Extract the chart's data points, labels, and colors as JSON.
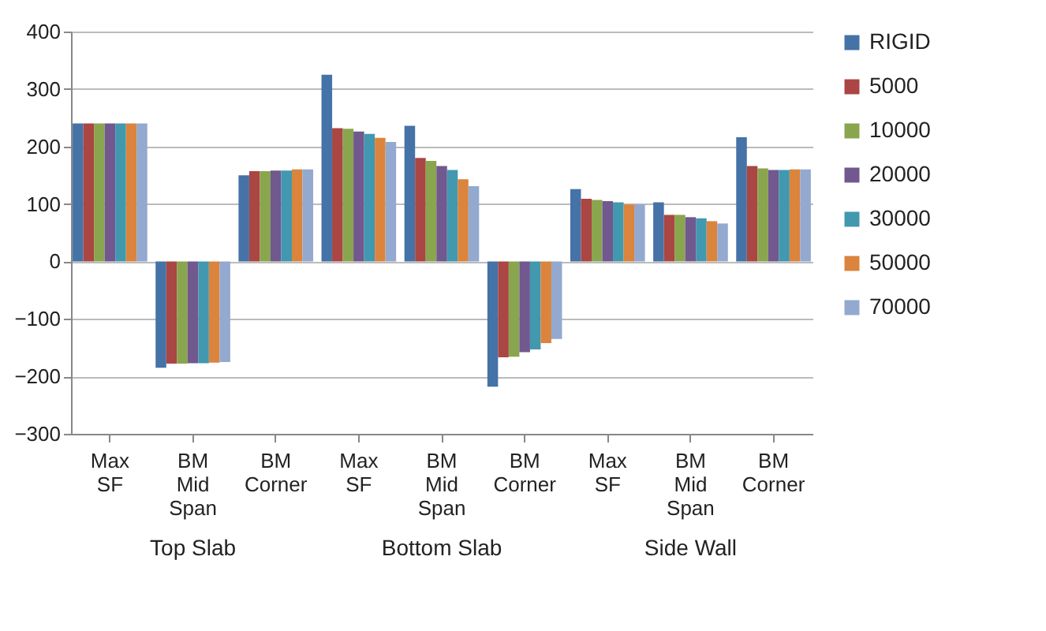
{
  "chart_data": {
    "type": "bar",
    "categories": [
      "Max SF",
      "BM Mid Span",
      "BM Corner",
      "Max SF",
      "BM Mid Span",
      "BM Corner",
      "Max SF",
      "BM Mid Span",
      "BM Corner"
    ],
    "annotations": [
      "Top Slab",
      "Bottom Slab",
      "Side Wall"
    ],
    "series": [
      {
        "name": "RIGID",
        "color": "#4572a7",
        "values": [
          240,
          -185,
          150,
          325,
          236,
          -218,
          126,
          103,
          216
        ]
      },
      {
        "name": "5000",
        "color": "#aa4643",
        "values": [
          240,
          -178,
          157,
          232,
          180,
          -167,
          109,
          81,
          166
        ]
      },
      {
        "name": "10000",
        "color": "#89a54e",
        "values": [
          240,
          -178,
          157,
          231,
          175,
          -166,
          107,
          81,
          162
        ]
      },
      {
        "name": "20000",
        "color": "#71588f",
        "values": [
          240,
          -177,
          158,
          226,
          166,
          -158,
          105,
          77,
          159
        ]
      },
      {
        "name": "30000",
        "color": "#4198af",
        "values": [
          240,
          -177,
          158,
          222,
          159,
          -153,
          103,
          75,
          159
        ]
      },
      {
        "name": "50000",
        "color": "#db843d",
        "values": [
          240,
          -176,
          160,
          215,
          143,
          -142,
          99,
          70,
          160
        ]
      },
      {
        "name": "70000",
        "color": "#93a9cf",
        "values": [
          240,
          -175,
          160,
          208,
          131,
          -135,
          99,
          66,
          160
        ]
      }
    ],
    "ylim": [
      -300,
      400
    ],
    "yticks": [
      -300,
      -200,
      -100,
      0,
      100,
      200,
      300,
      400
    ],
    "grid": "y",
    "legend": "right"
  }
}
